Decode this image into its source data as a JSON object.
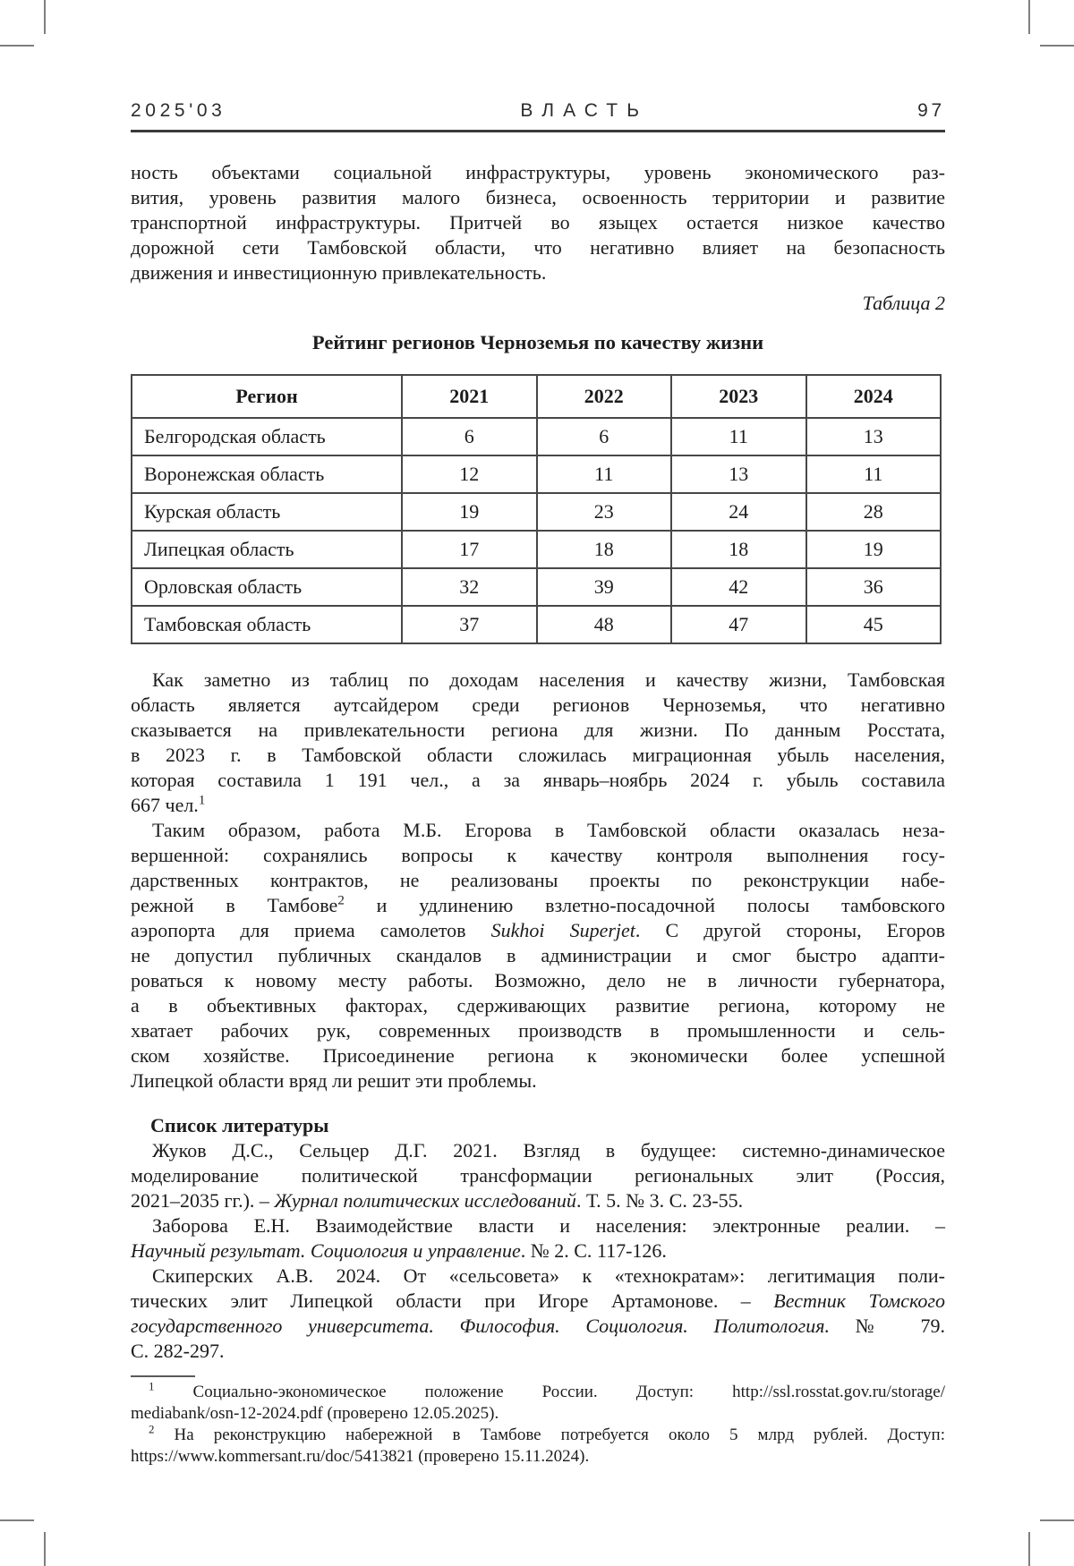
{
  "header": {
    "issue": "2025'03",
    "journal": "ВЛАСТЬ",
    "page": "97"
  },
  "table_label": "Таблица 2",
  "table_title": "Рейтинг регионов Черноземья по качеству жизни",
  "table": {
    "columns": [
      "Регион",
      "2021",
      "2022",
      "2023",
      "2024"
    ],
    "rows": [
      [
        "Белгородская область",
        "6",
        "6",
        "11",
        "13"
      ],
      [
        "Воронежская область",
        "12",
        "11",
        "13",
        "11"
      ],
      [
        "Курская область",
        "19",
        "23",
        "24",
        "28"
      ],
      [
        "Липецкая область",
        "17",
        "18",
        "18",
        "19"
      ],
      [
        "Орловская область",
        "32",
        "39",
        "42",
        "36"
      ],
      [
        "Тамбовская область",
        "37",
        "48",
        "47",
        "45"
      ]
    ]
  },
  "references_heading": "Список литературы",
  "blocks": {
    "p1": [
      {
        "t": "ность объектами социальной инфраструктуры, уровень экономического раз-"
      },
      {
        "t": "вития, уровень развития малого бизнеса, освоенность территории и развитие"
      },
      {
        "t": "транспортной инфраструктуры. Притчей во языцех остается низкое качество"
      },
      {
        "t": "дорожной сети Тамбовской области, что негативно влияет на безопасность"
      },
      {
        "t": "движения и инвестиционную привлекательность.",
        "end": true
      }
    ],
    "p2": [
      {
        "t": "Как заметно из таблиц по доходам населения и качеству жизни, Тамбовская",
        "indent": true
      },
      {
        "t": "область является аутсайдером среди регионов Черноземья, что негативно"
      },
      {
        "t": "сказывается на привлекательности региона для жизни. По данным Росстата,"
      },
      {
        "t": "в 2023 г. в Тамбовской области сложилась миграционная убыль населения,"
      },
      {
        "t": "которая составила 1 191 чел., а за январь–ноябрь 2024 г. убыль составила"
      },
      {
        "seg": [
          {
            "t": "667 чел."
          },
          {
            "t": "1",
            "s": "sup"
          }
        ],
        "end": true
      }
    ],
    "p3": [
      {
        "t": "Таким образом, работа М.Б. Егорова в Тамбовской области оказалась неза-",
        "indent": true
      },
      {
        "t": "вершенной: сохранялись вопросы к качеству контроля выполнения госу-"
      },
      {
        "t": "дарственных контрактов, не реализованы проекты по реконструкции набе-"
      },
      {
        "seg": [
          {
            "t": "режной в Тамбове"
          },
          {
            "t": "2",
            "s": "sup"
          },
          {
            "t": " и удлинению взлетно-посадочной полосы тамбовского"
          }
        ]
      },
      {
        "seg": [
          {
            "t": "аэропорта для приема самолетов "
          },
          {
            "t": "Sukhoi Superjet",
            "s": "i"
          },
          {
            "t": ". С другой стороны, Егоров"
          }
        ]
      },
      {
        "t": "не допустил публичных скандалов в администрации и смог быстро адапти-"
      },
      {
        "t": "роваться к новому месту работы. Возможно, дело не в личности губернатора,"
      },
      {
        "t": "а в объективных факторах, сдерживающих развитие региона, которому не"
      },
      {
        "t": "хватает рабочих рук, современных производств в промышленности и сель-"
      },
      {
        "t": "ском хозяйстве. Присоединение региона к экономически более успешной"
      },
      {
        "t": "Липецкой области вряд ли решит эти проблемы.",
        "end": true
      }
    ],
    "ref1": [
      {
        "t": "Жуков Д.С., Сельцер Д.Г. 2021. Взгляд в будущее: системно-динамическое",
        "indent": true
      },
      {
        "t": "моделирование политической трансформации региональных элит (Россия,"
      },
      {
        "seg": [
          {
            "t": "2021–2035 гг.). – "
          },
          {
            "t": "Журнал политических исследований",
            "s": "i"
          },
          {
            "t": ". Т. 5. № 3. С. 23-55."
          }
        ],
        "end": true
      }
    ],
    "ref2": [
      {
        "t": "Заборова Е.Н. Взаимодействие власти и населения: электронные реалии. –",
        "indent": true
      },
      {
        "seg": [
          {
            "t": "Научный результат. Социология и управление",
            "s": "i"
          },
          {
            "t": ". № 2. С. 117-126."
          }
        ],
        "end": true
      }
    ],
    "ref3": [
      {
        "t": "Скиперских А.В. 2024. От «сельсовета» к «технократам»: легитимация поли-",
        "indent": true
      },
      {
        "seg": [
          {
            "t": "тических элит Липецкой области при Игоре Артамонове. – "
          },
          {
            "t": "Вестник Томского",
            "s": "i"
          }
        ]
      },
      {
        "seg": [
          {
            "t": "государственного университета. Философия. Социология. Политология.",
            "s": "i"
          },
          {
            "t": " № 79."
          }
        ]
      },
      {
        "t": "С. 282-297.",
        "end": true
      }
    ],
    "fn1": [
      {
        "seg": [
          {
            "t": "1",
            "s": "sup"
          },
          {
            "t": " Социально-экономическое положение России. Доступ: http://ssl.rosstat.gov.ru/storage/"
          }
        ],
        "indent": true
      },
      {
        "t": "mediabank/osn-12-2024.pdf (проверено 12.05.2025).",
        "end": true
      }
    ],
    "fn2": [
      {
        "seg": [
          {
            "t": "2",
            "s": "sup"
          },
          {
            "t": " На реконструкцию набережной в Тамбове потребуется около 5 млрд рублей. Доступ:"
          }
        ],
        "indent": true
      },
      {
        "t": "https://www.kommersant.ru/doc/5413821 (проверено 15.11.2024).",
        "end": true
      }
    ]
  }
}
